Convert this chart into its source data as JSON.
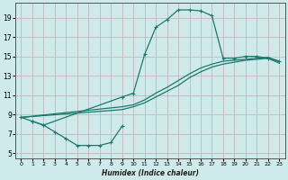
{
  "xlabel": "Humidex (Indice chaleur)",
  "bg_color": "#ceeaea",
  "grid_color": "#c8b4be",
  "line_color": "#1a7a6e",
  "xlim": [
    -0.5,
    23.5
  ],
  "ylim": [
    4.5,
    20.5
  ],
  "yticks": [
    5,
    7,
    9,
    11,
    13,
    15,
    17,
    19
  ],
  "xticks": [
    0,
    1,
    2,
    3,
    4,
    5,
    6,
    7,
    8,
    9,
    10,
    11,
    12,
    13,
    14,
    15,
    16,
    17,
    18,
    19,
    20,
    21,
    22,
    23
  ],
  "top_curve_x": [
    0,
    1,
    2,
    9,
    10,
    11,
    12,
    13,
    14,
    15,
    16,
    17,
    18,
    19,
    20,
    21,
    22,
    23
  ],
  "top_curve_y": [
    8.7,
    8.3,
    7.9,
    10.8,
    11.2,
    15.2,
    18.0,
    18.8,
    19.8,
    19.8,
    19.7,
    19.2,
    14.8,
    14.8,
    15.0,
    15.0,
    14.8,
    14.5
  ],
  "diag_line1_x": [
    0,
    9,
    10,
    11,
    12,
    13,
    14,
    15,
    16,
    17,
    18,
    19,
    20,
    21,
    22,
    23
  ],
  "diag_line1_y": [
    8.7,
    9.8,
    10.0,
    10.5,
    11.2,
    11.8,
    12.5,
    13.2,
    13.8,
    14.2,
    14.5,
    14.6,
    14.7,
    14.8,
    14.9,
    14.5
  ],
  "diag_line2_x": [
    0,
    9,
    10,
    11,
    12,
    13,
    14,
    15,
    16,
    17,
    18,
    19,
    20,
    21,
    22,
    23
  ],
  "diag_line2_y": [
    8.7,
    9.5,
    9.8,
    10.2,
    10.8,
    11.4,
    12.0,
    12.8,
    13.4,
    13.9,
    14.2,
    14.4,
    14.6,
    14.7,
    14.8,
    14.3
  ],
  "bottom_curve_x": [
    1,
    2,
    3,
    4,
    5,
    6,
    7,
    8,
    9
  ],
  "bottom_curve_y": [
    8.3,
    7.9,
    7.2,
    6.5,
    5.8,
    5.8,
    5.8,
    6.1,
    7.8
  ]
}
